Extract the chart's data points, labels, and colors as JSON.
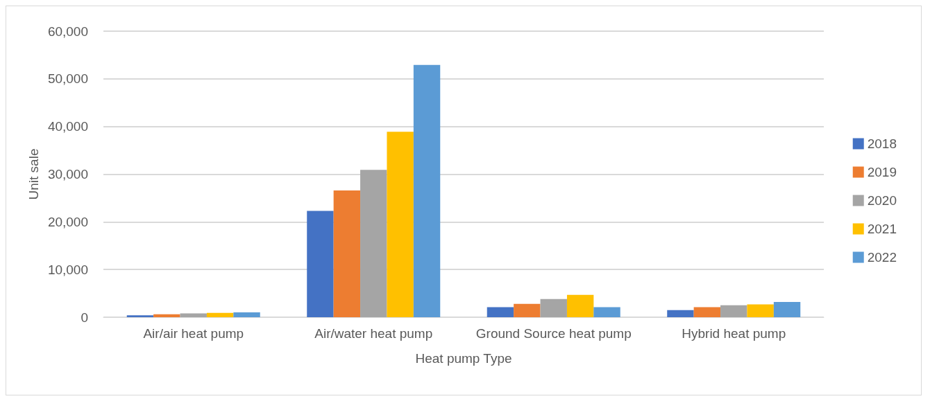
{
  "chart_data": {
    "type": "bar",
    "xlabel": "Heat pump Type",
    "ylabel": "Unit sale",
    "categories": [
      "Air/air heat pump",
      "Air/water heat pump",
      "Ground Source heat pump",
      "Hybrid heat pump"
    ],
    "series": [
      {
        "name": "2018",
        "color": "#4472c4",
        "values": [
          400,
          22300,
          2100,
          1500
        ]
      },
      {
        "name": "2019",
        "color": "#ed7d31",
        "values": [
          600,
          26600,
          2800,
          2100
        ]
      },
      {
        "name": "2020",
        "color": "#a5a5a5",
        "values": [
          800,
          30900,
          3800,
          2500
        ]
      },
      {
        "name": "2021",
        "color": "#ffc000",
        "values": [
          900,
          38900,
          4700,
          2700
        ]
      },
      {
        "name": "2022",
        "color": "#5b9bd5",
        "values": [
          1000,
          52900,
          2100,
          3200
        ]
      }
    ],
    "ylim": [
      0,
      60000
    ],
    "yticks": [
      {
        "value": 0,
        "label": "0"
      },
      {
        "value": 10000,
        "label": "10,000"
      },
      {
        "value": 20000,
        "label": "20,000"
      },
      {
        "value": 30000,
        "label": "30,000"
      },
      {
        "value": 40000,
        "label": "40,000"
      },
      {
        "value": 50000,
        "label": "50,000"
      },
      {
        "value": 60000,
        "label": "60,000"
      }
    ],
    "grid": "y",
    "legend": "right"
  }
}
